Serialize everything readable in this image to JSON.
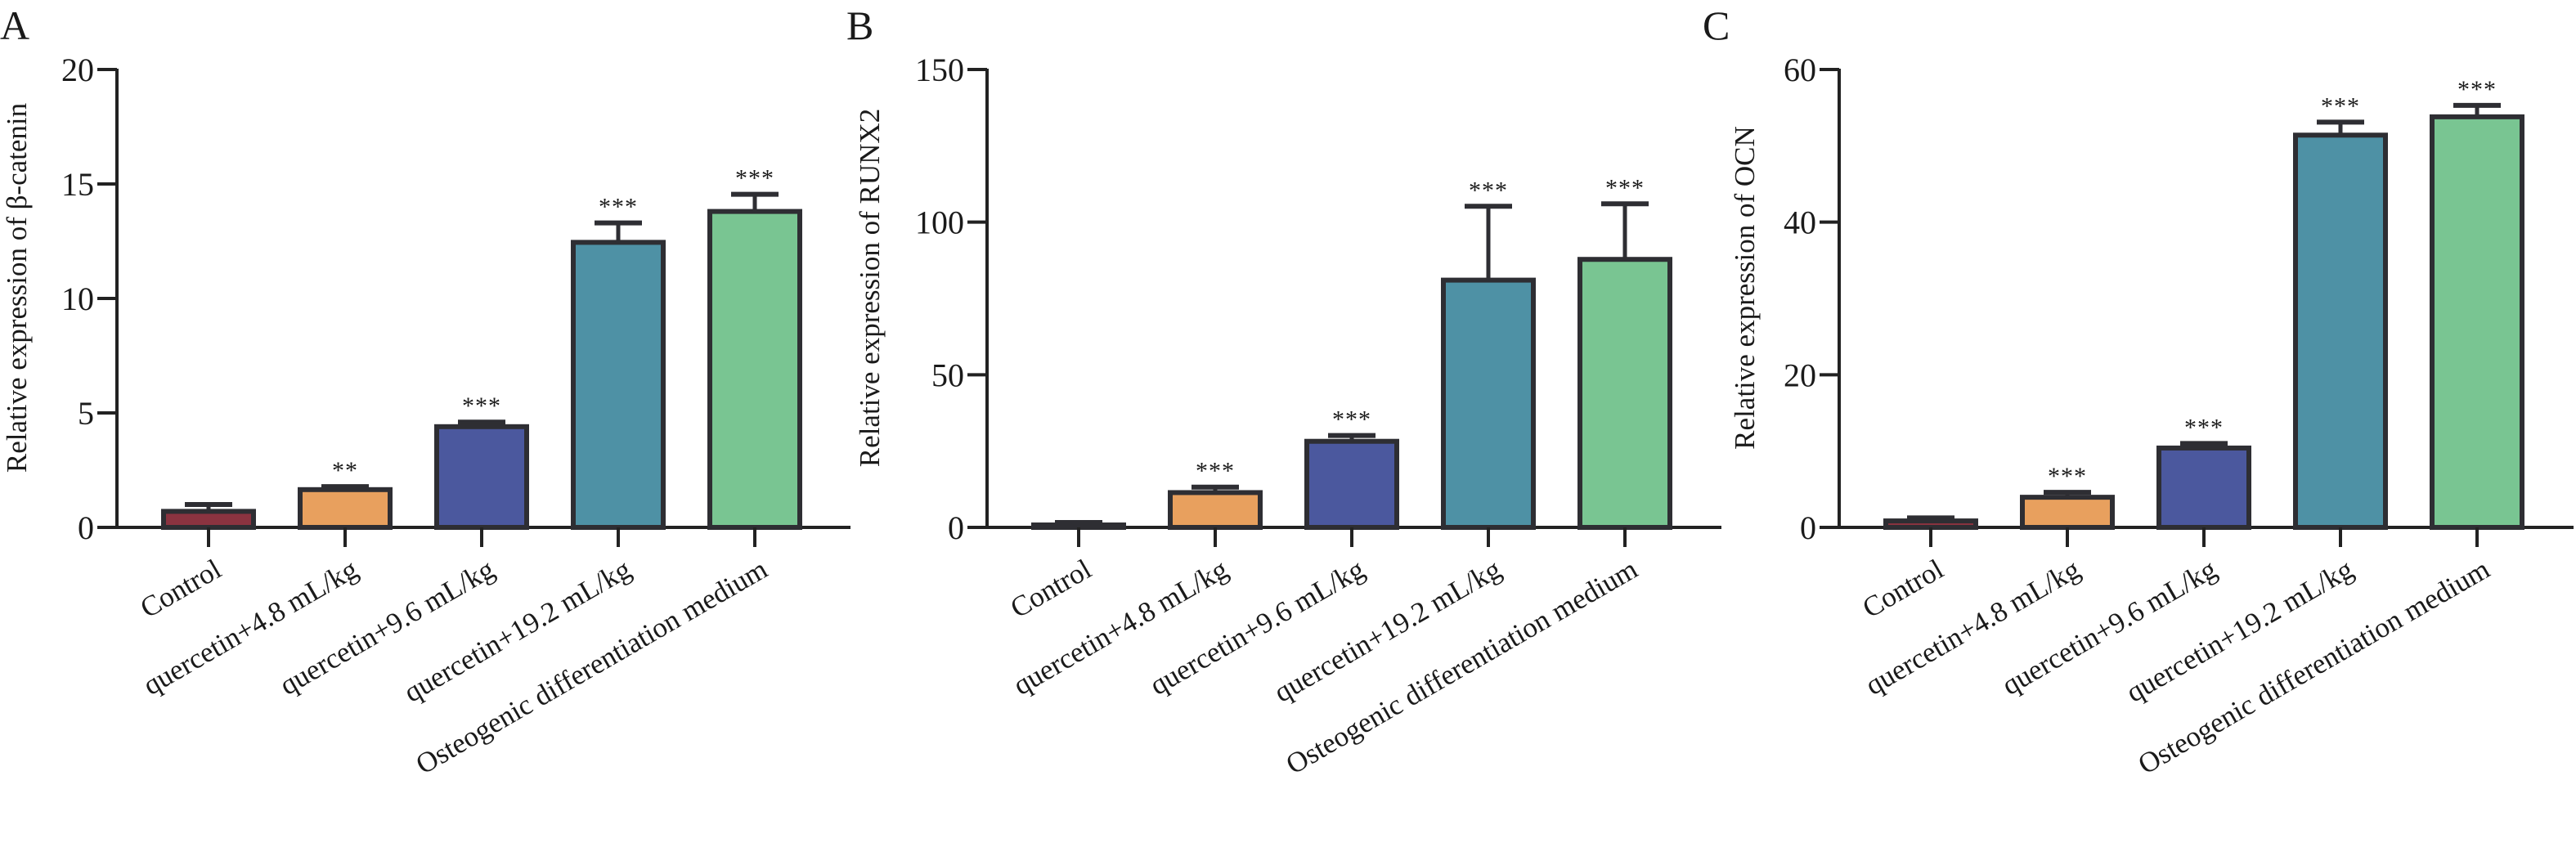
{
  "figure": {
    "panels": [
      "A",
      "B",
      "C"
    ]
  },
  "style": {
    "axis_color": "#222222",
    "bar_border_color": "#2e2e33",
    "bar_colors": [
      "#8b3340",
      "#e8a05e",
      "#4b589e",
      "#4e91a5",
      "#79c592"
    ]
  },
  "chart_data": [
    {
      "type": "bar",
      "panel_label": "A",
      "title": "",
      "xlabel": "",
      "ylabel": "Relative expression of β-catenin",
      "ylim": [
        0,
        20
      ],
      "yticks": [
        0,
        5,
        10,
        15,
        20
      ],
      "grid": false,
      "legend": "none",
      "categories": [
        "Control",
        "quercetin+4.8 mL/kg",
        "quercetin+9.6 mL/kg",
        "quercetin+19.2 mL/kg",
        "Osteogenic differentiation medium"
      ],
      "values": [
        0.7,
        1.65,
        4.4,
        12.45,
        13.8
      ],
      "error_upper": [
        1.0,
        1.78,
        4.6,
        13.3,
        14.55
      ],
      "significance": [
        "",
        "**",
        "***",
        "***",
        "***"
      ]
    },
    {
      "type": "bar",
      "panel_label": "B",
      "title": "",
      "xlabel": "",
      "ylabel": "Relative expression of RUNX2",
      "ylim": [
        0,
        150
      ],
      "yticks": [
        0,
        50,
        100,
        150
      ],
      "grid": false,
      "legend": "none",
      "categories": [
        "Control",
        "quercetin+4.8 mL/kg",
        "quercetin+9.6 mL/kg",
        "quercetin+19.2 mL/kg",
        "Osteogenic differentiation medium"
      ],
      "values": [
        0.8,
        11.4,
        28.2,
        81.0,
        87.8
      ],
      "error_upper": [
        1.6,
        13.2,
        30.1,
        105.2,
        106.0
      ],
      "significance": [
        "",
        "***",
        "***",
        "***",
        "***"
      ]
    },
    {
      "type": "bar",
      "panel_label": "C",
      "title": "",
      "xlabel": "",
      "ylabel": "Relative expression of OCN",
      "ylim": [
        0,
        60
      ],
      "yticks": [
        0,
        20,
        40,
        60
      ],
      "grid": false,
      "legend": "none",
      "categories": [
        "Control",
        "quercetin+4.8 mL/kg",
        "quercetin+9.6 mL/kg",
        "quercetin+19.2 mL/kg",
        "Osteogenic differentiation medium"
      ],
      "values": [
        0.85,
        3.95,
        10.4,
        51.4,
        53.8
      ],
      "error_upper": [
        1.25,
        4.6,
        11.0,
        53.1,
        55.3
      ],
      "significance": [
        "",
        "***",
        "***",
        "***",
        "***"
      ]
    }
  ]
}
